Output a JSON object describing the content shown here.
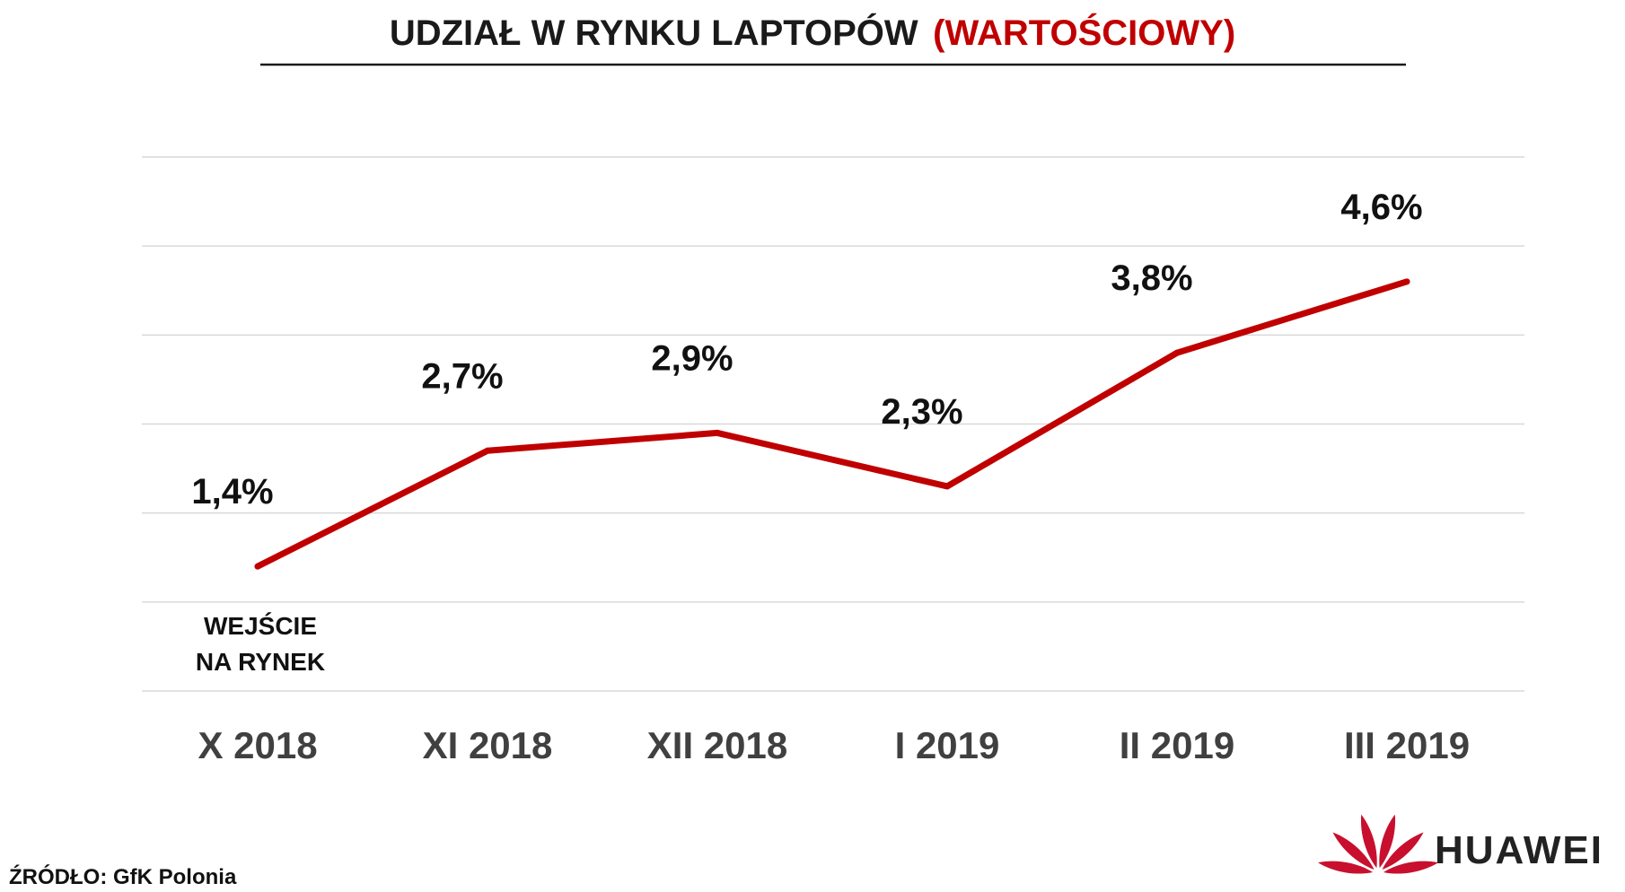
{
  "chart_data": {
    "type": "line",
    "title": "UDZIAŁ W RYNKU LAPTOPÓW",
    "title_accent": "(WARTOŚCIOWY)",
    "categories": [
      "X 2018",
      "XI 2018",
      "XII 2018",
      "I 2019",
      "II 2019",
      "III 2019"
    ],
    "series": [
      {
        "values": [
          1.4,
          2.7,
          2.9,
          2.3,
          3.8,
          4.6
        ],
        "labels": [
          "1,4%",
          "2,7%",
          "2,9%",
          "2,3%",
          "3,8%",
          "4,6%"
        ],
        "color": "#c00000"
      }
    ],
    "ylim": [
      0,
      6
    ],
    "grid": true,
    "annotations": [
      {
        "category_index": 0,
        "lines": [
          "WEJŚCIE",
          "NA RYNEK"
        ]
      }
    ],
    "title_color": "#1a1a1a",
    "accent_color": "#c00000"
  },
  "source": "ŹRÓDŁO: GfK Polonia",
  "brand": {
    "name": "HUAWEI",
    "logo_icon": "huawei-petal-logo",
    "logo_color": "#c8102e"
  }
}
